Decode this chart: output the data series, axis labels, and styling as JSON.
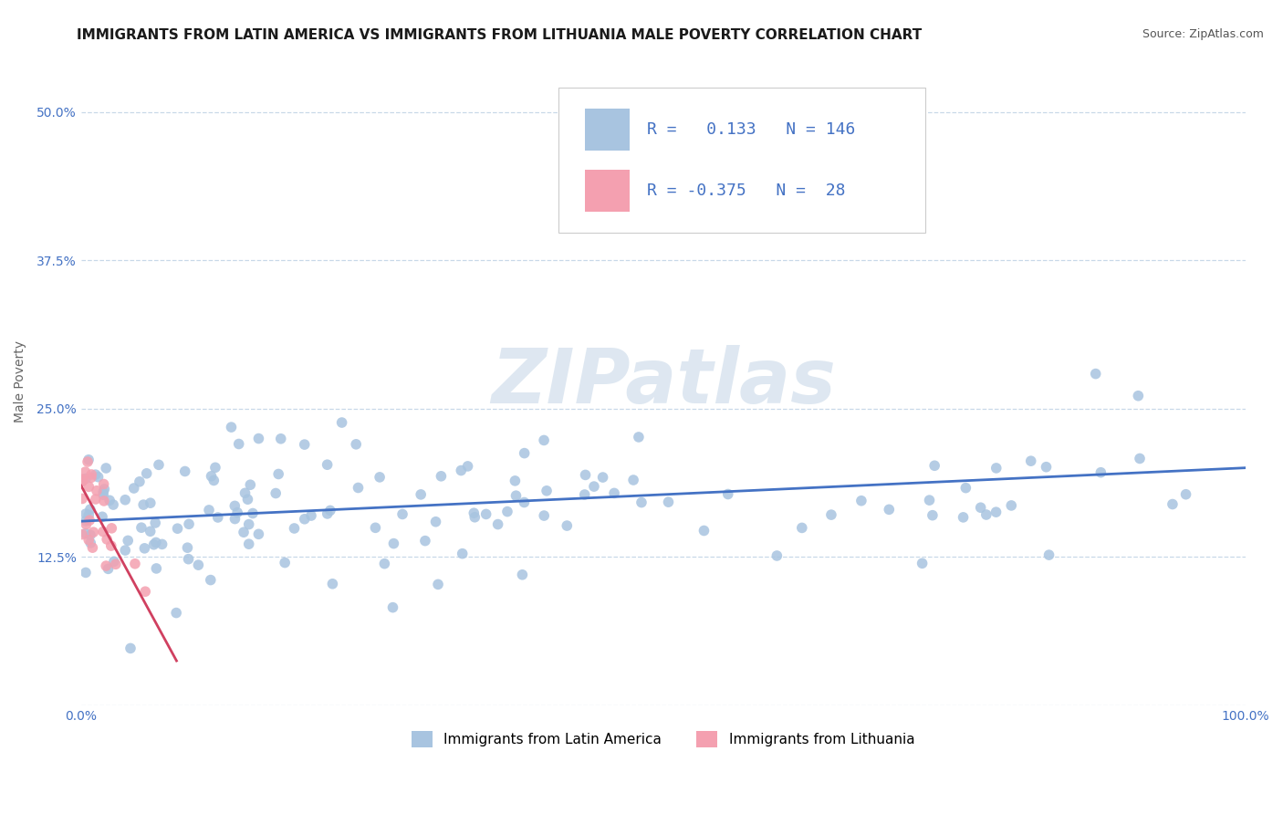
{
  "title": "IMMIGRANTS FROM LATIN AMERICA VS IMMIGRANTS FROM LITHUANIA MALE POVERTY CORRELATION CHART",
  "source": "Source: ZipAtlas.com",
  "ylabel": "Male Poverty",
  "xlim": [
    0.0,
    1.0
  ],
  "ylim": [
    0.0,
    0.545
  ],
  "ytick_vals": [
    0.0,
    0.125,
    0.25,
    0.375,
    0.5
  ],
  "ytick_labels": [
    "",
    "12.5%",
    "25.0%",
    "37.5%",
    "50.0%"
  ],
  "xtick_vals": [
    0.0,
    1.0
  ],
  "xtick_labels": [
    "0.0%",
    "100.0%"
  ],
  "color_blue": "#a8c4e0",
  "color_pink": "#f4a0b0",
  "line_blue": "#4472c4",
  "line_pink": "#d04060",
  "bg_color": "#ffffff",
  "grid_color": "#c8d8e8",
  "watermark_text": "ZIPatlas",
  "title_fontsize": 11,
  "ylabel_fontsize": 10,
  "tick_fontsize": 10,
  "source_fontsize": 9,
  "legend_inner_r1_label": "R =   0.133   N = 146",
  "legend_inner_r2_label": "R = -0.375   N =  28",
  "bottom_label1": "Immigrants from Latin America",
  "bottom_label2": "Immigrants from Lithuania"
}
